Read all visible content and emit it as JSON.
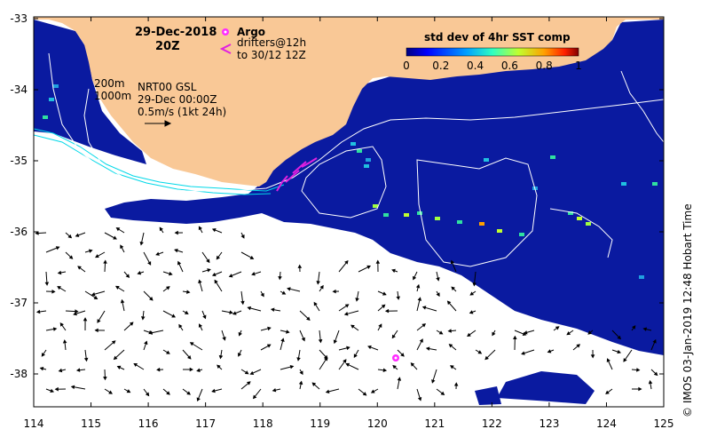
{
  "map": {
    "date": "29-Dec-2018",
    "time": "20Z",
    "legend_argo": "Argo",
    "legend_drifters_1": "drifters@12h",
    "legend_drifters_2": "to 30/12 12Z",
    "isobath_1": "200m",
    "isobath_2": "1000m",
    "product": "NRT00 GSL",
    "product_time": "29-Dec 00:00Z",
    "scale_label": "0.5m/s (1kt 24h)",
    "colorbar_title": "std dev of 4hr SST comp",
    "colorbar_ticks": [
      "0",
      "0.2",
      "0.4",
      "0.6",
      "0.8",
      "1"
    ],
    "credit": "© IMOS 03-Jan-2019 12:48 Hobart Time",
    "x_ticks": [
      "114",
      "115",
      "116",
      "117",
      "118",
      "119",
      "120",
      "121",
      "122",
      "123",
      "124",
      "125"
    ],
    "y_ticks": [
      "-33",
      "-34",
      "-35",
      "-36",
      "-37",
      "-38"
    ],
    "colors": {
      "land": "#f9c896",
      "sst_low": "#0a1aa0",
      "contour": "#ffffff",
      "coast_line": "#00d8e8",
      "argo": "#ff2bff",
      "drifter": "#e020e0"
    }
  }
}
